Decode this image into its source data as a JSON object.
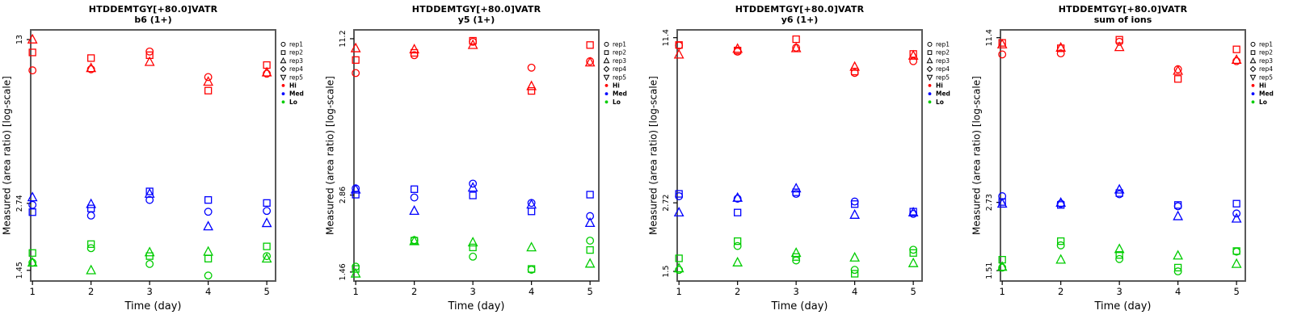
{
  "colors": {
    "hi": "#FF0000",
    "med": "#0000FF",
    "lo": "#00CC00",
    "frame": "#595959",
    "tick": "#000000",
    "text": "#000000"
  },
  "legend": {
    "reps": [
      {
        "label": "rep1",
        "marker": "circle"
      },
      {
        "label": "rep2",
        "marker": "square"
      },
      {
        "label": "rep3",
        "marker": "triangle"
      },
      {
        "label": "rep4",
        "marker": "diamond"
      },
      {
        "label": "rep5",
        "marker": "triangle-down"
      }
    ],
    "levels": [
      {
        "label": "Hi",
        "color": "#FF0000"
      },
      {
        "label": "Med",
        "color": "#0000FF"
      },
      {
        "label": "Lo",
        "color": "#00CC00"
      }
    ]
  },
  "chart_data": [
    {
      "type": "scatter",
      "title": "HTDDEMTGY[+80.0]VATR",
      "subtitle": "b6 (1+)",
      "xlabel": "Time (day)",
      "ylabel": "Measured (area ratio) [log-scale]",
      "yscale": "log",
      "days": [
        1,
        2,
        3,
        4,
        5
      ],
      "xlim": [
        0.97,
        5.15
      ],
      "ylim": [
        1.31,
        14.25
      ],
      "yticks": [
        {
          "value": 13,
          "label": "13"
        },
        {
          "value": 2.74,
          "label": "2.74"
        },
        {
          "value": 1.45,
          "label": "1.45"
        }
      ],
      "series": [
        {
          "level": "Hi",
          "color": "#FF0000",
          "reps": [
            {
              "rep": "rep1",
              "marker": "circle",
              "values": [
                9.7,
                9.8,
                11.6,
                9.1,
                9.4
              ]
            },
            {
              "rep": "rep2",
              "marker": "square",
              "values": [
                11.5,
                10.9,
                11.2,
                8.0,
                10.2
              ]
            },
            {
              "rep": "rep3",
              "marker": "triangle",
              "values": [
                13.0,
                9.9,
                10.5,
                8.7,
                9.5
              ]
            }
          ]
        },
        {
          "level": "Med",
          "color": "#0000FF",
          "reps": [
            {
              "rep": "rep1",
              "marker": "circle",
              "values": [
                2.7,
                2.44,
                2.83,
                2.53,
                2.55
              ]
            },
            {
              "rep": "rep2",
              "marker": "square",
              "values": [
                2.52,
                2.61,
                3.07,
                2.83,
                2.75
              ]
            },
            {
              "rep": "rep3",
              "marker": "triangle",
              "values": [
                2.9,
                2.72,
                3.0,
                2.2,
                2.27
              ]
            }
          ]
        },
        {
          "level": "Lo",
          "color": "#00CC00",
          "reps": [
            {
              "rep": "rep1",
              "marker": "circle",
              "values": [
                1.56,
                1.79,
                1.54,
                1.38,
                1.66
              ]
            },
            {
              "rep": "rep2",
              "marker": "square",
              "values": [
                1.71,
                1.86,
                1.66,
                1.62,
                1.82
              ]
            },
            {
              "rep": "rep3",
              "marker": "triangle",
              "values": [
                1.56,
                1.45,
                1.72,
                1.73,
                1.62
              ]
            }
          ]
        }
      ]
    },
    {
      "type": "scatter",
      "title": "HTDDEMTGY[+80.0]VATR",
      "subtitle": "y5 (1+)",
      "xlabel": "Time (day)",
      "ylabel": "Measured (area ratio) [log-scale]",
      "yscale": "log",
      "days": [
        1,
        2,
        3,
        4,
        5
      ],
      "xlim": [
        0.97,
        5.15
      ],
      "ylim": [
        1.35,
        12.1
      ],
      "yticks": [
        {
          "value": 11.2,
          "label": "11.2"
        },
        {
          "value": 2.86,
          "label": "2.86"
        },
        {
          "value": 1.46,
          "label": "1.46"
        }
      ],
      "series": [
        {
          "level": "Hi",
          "color": "#FF0000",
          "reps": [
            {
              "rep": "rep1",
              "marker": "circle",
              "values": [
                8.3,
                9.7,
                10.9,
                8.7,
                9.2
              ]
            },
            {
              "rep": "rep2",
              "marker": "square",
              "values": [
                9.3,
                9.9,
                11.0,
                7.1,
                10.6
              ]
            },
            {
              "rep": "rep3",
              "marker": "triangle",
              "values": [
                10.3,
                10.2,
                10.6,
                7.4,
                9.1
              ]
            }
          ]
        },
        {
          "level": "Med",
          "color": "#0000FF",
          "reps": [
            {
              "rep": "rep1",
              "marker": "circle",
              "values": [
                3.03,
                2.8,
                3.16,
                2.67,
                2.38
              ]
            },
            {
              "rep": "rep2",
              "marker": "square",
              "values": [
                2.87,
                3.01,
                2.85,
                2.48,
                2.87
              ]
            },
            {
              "rep": "rep3",
              "marker": "triangle",
              "values": [
                3.0,
                2.49,
                3.05,
                2.63,
                2.24
              ]
            }
          ]
        },
        {
          "level": "Lo",
          "color": "#00CC00",
          "reps": [
            {
              "rep": "rep1",
              "marker": "circle",
              "values": [
                1.53,
                1.93,
                1.67,
                1.49,
                1.92
              ]
            },
            {
              "rep": "rep2",
              "marker": "square",
              "values": [
                1.5,
                1.92,
                1.81,
                1.5,
                1.77
              ]
            },
            {
              "rep": "rep3",
              "marker": "triangle",
              "values": [
                1.44,
                1.91,
                1.89,
                1.81,
                1.57
              ]
            }
          ]
        }
      ]
    },
    {
      "type": "scatter",
      "title": "HTDDEMTGY[+80.0]VATR",
      "subtitle": "y6 (1+)",
      "xlabel": "Time (day)",
      "ylabel": "Measured (area ratio) [log-scale]",
      "yscale": "log",
      "days": [
        1,
        2,
        3,
        4,
        5
      ],
      "xlim": [
        0.97,
        5.15
      ],
      "ylim": [
        1.38,
        12.2
      ],
      "yticks": [
        {
          "value": 11.4,
          "label": "11.4"
        },
        {
          "value": 2.72,
          "label": "2.72"
        },
        {
          "value": 1.5,
          "label": "1.5"
        }
      ],
      "series": [
        {
          "level": "Hi",
          "color": "#FF0000",
          "reps": [
            {
              "rep": "rep1",
              "marker": "circle",
              "values": [
                10.65,
                10.1,
                10.45,
                8.4,
                9.3
              ]
            },
            {
              "rep": "rep2",
              "marker": "square",
              "values": [
                10.7,
                10.2,
                11.25,
                8.5,
                9.9
              ]
            },
            {
              "rep": "rep3",
              "marker": "triangle",
              "values": [
                9.84,
                10.35,
                10.4,
                8.85,
                9.75
              ]
            }
          ]
        },
        {
          "level": "Med",
          "color": "#0000FF",
          "reps": [
            {
              "rep": "rep1",
              "marker": "circle",
              "values": [
                2.88,
                2.82,
                2.94,
                2.75,
                2.47
              ]
            },
            {
              "rep": "rep2",
              "marker": "square",
              "values": [
                2.94,
                2.5,
                2.98,
                2.69,
                2.52
              ]
            },
            {
              "rep": "rep3",
              "marker": "triangle",
              "values": [
                2.5,
                2.84,
                3.08,
                2.45,
                2.5
              ]
            }
          ]
        },
        {
          "level": "Lo",
          "color": "#00CC00",
          "reps": [
            {
              "rep": "rep1",
              "marker": "circle",
              "values": [
                1.52,
                1.87,
                1.65,
                1.52,
                1.81
              ]
            },
            {
              "rep": "rep2",
              "marker": "square",
              "values": [
                1.68,
                1.95,
                1.7,
                1.47,
                1.76
              ]
            },
            {
              "rep": "rep3",
              "marker": "triangle",
              "values": [
                1.54,
                1.62,
                1.76,
                1.69,
                1.61
              ]
            }
          ]
        }
      ]
    },
    {
      "type": "scatter",
      "title": "HTDDEMTGY[+80.0]VATR",
      "subtitle": "sum of ions",
      "xlabel": "Time (day)",
      "ylabel": "Measured (area ratio) [log-scale]",
      "yscale": "log",
      "days": [
        1,
        2,
        3,
        4,
        5
      ],
      "xlim": [
        0.97,
        5.15
      ],
      "ylim": [
        1.38,
        12.2
      ],
      "yticks": [
        {
          "value": 11.4,
          "label": "11.4"
        },
        {
          "value": 2.73,
          "label": "2.73"
        },
        {
          "value": 1.51,
          "label": "1.51"
        }
      ],
      "series": [
        {
          "level": "Hi",
          "color": "#FF0000",
          "reps": [
            {
              "rep": "rep1",
              "marker": "circle",
              "values": [
                9.86,
                9.95,
                11.0,
                8.67,
                9.3
              ]
            },
            {
              "rep": "rep2",
              "marker": "square",
              "values": [
                10.9,
                10.4,
                11.2,
                7.97,
                10.3
              ]
            },
            {
              "rep": "rep3",
              "marker": "triangle",
              "values": [
                10.75,
                10.45,
                10.5,
                8.55,
                9.4
              ]
            }
          ]
        },
        {
          "level": "Med",
          "color": "#0000FF",
          "reps": [
            {
              "rep": "rep1",
              "marker": "circle",
              "values": [
                2.88,
                2.7,
                2.93,
                2.64,
                2.48
              ]
            },
            {
              "rep": "rep2",
              "marker": "square",
              "values": [
                2.74,
                2.67,
                2.96,
                2.67,
                2.7
              ]
            },
            {
              "rep": "rep3",
              "marker": "triangle",
              "values": [
                2.7,
                2.72,
                3.05,
                2.42,
                2.37
              ]
            }
          ]
        },
        {
          "level": "Lo",
          "color": "#00CC00",
          "reps": [
            {
              "rep": "rep1",
              "marker": "circle",
              "values": [
                1.55,
                1.88,
                1.67,
                1.5,
                1.78
              ]
            },
            {
              "rep": "rep2",
              "marker": "square",
              "values": [
                1.66,
                1.95,
                1.73,
                1.55,
                1.79
              ]
            },
            {
              "rep": "rep3",
              "marker": "triangle",
              "values": [
                1.56,
                1.66,
                1.82,
                1.72,
                1.6
              ]
            }
          ]
        }
      ]
    }
  ]
}
